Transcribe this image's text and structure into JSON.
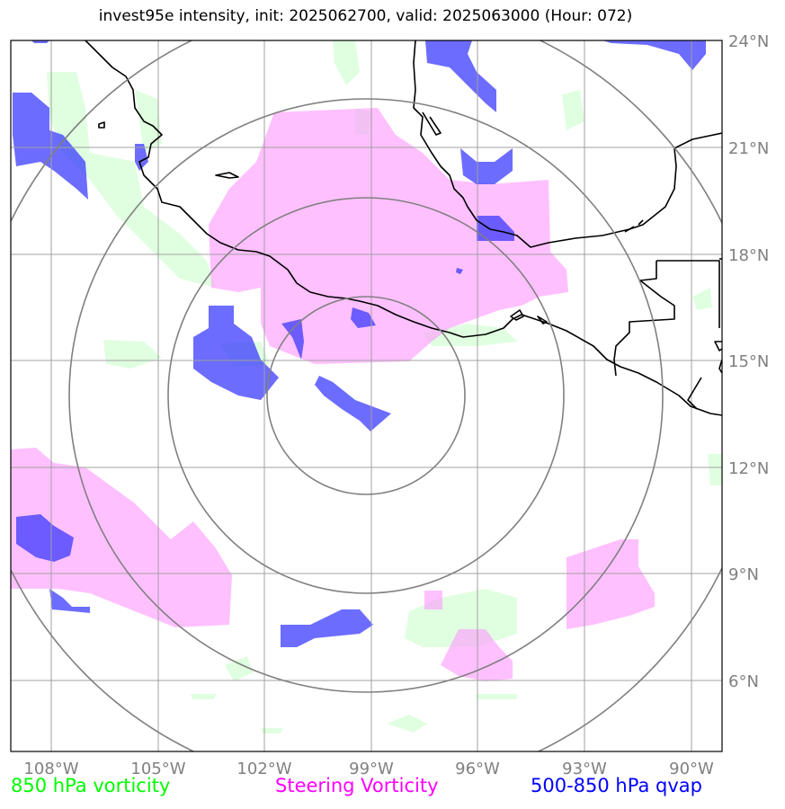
{
  "title": "invest95e intensity, init: 2025062700, valid: 2025063000 (Hour: 072)",
  "x_ticks": [
    "108°W",
    "105°W",
    "102°W",
    "99°W",
    "96°W",
    "93°W",
    "90°W"
  ],
  "y_ticks": [
    "24°N",
    "21°N",
    "18°N",
    "15°N",
    "12°N",
    "9°N",
    "6°N"
  ],
  "legend": {
    "v850": {
      "label": "850 hPa vorticity",
      "color": "#00ff00"
    },
    "steering": {
      "label": "Steering Vorticity",
      "color": "#ff00ff"
    },
    "qvap": {
      "label": "500-850 hPa qvap",
      "color": "#0000ff"
    }
  },
  "colors": {
    "v850_fill": "#e0ffe0",
    "steering_fill": "#ffbfff",
    "qvap_fill": "#6c6cf8",
    "grid": "#a0a0a0",
    "range_rings": "#808080",
    "coastline": "#000000"
  }
}
